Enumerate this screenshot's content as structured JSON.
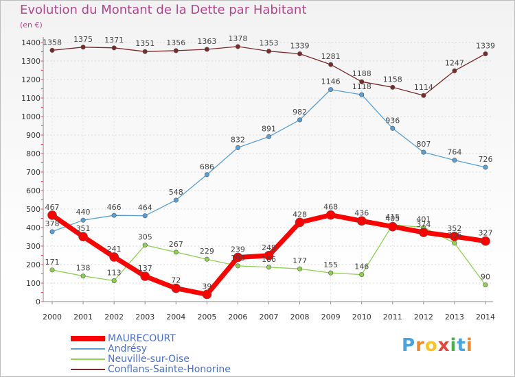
{
  "header": {
    "title": "Evolution du Montant de la Dette par Habitant",
    "subtitle": "(en €)"
  },
  "brand": {
    "text": "Proxiti",
    "colors": [
      "#4aa3df",
      "#f0892a",
      "#f7c325",
      "#e8433a",
      "#48b34a",
      "#4aa3df",
      "#f0892a"
    ]
  },
  "chart_data": {
    "type": "line",
    "title": "Evolution du Montant de la Dette par Habitant",
    "ylabel": "(en €)",
    "xlabel": "",
    "categories": [
      "2000",
      "2001",
      "2002",
      "2003",
      "2004",
      "2005",
      "2006",
      "2007",
      "2008",
      "2009",
      "2010",
      "2011",
      "2012",
      "2013",
      "2014"
    ],
    "ylim": [
      0,
      1400
    ],
    "yticks": [
      0,
      100,
      200,
      300,
      400,
      500,
      600,
      700,
      800,
      900,
      1000,
      1100,
      1200,
      1300,
      1400
    ],
    "grid": true,
    "legend_position": "bottom-left",
    "series": [
      {
        "name": "Conflans-Sainte-Honorine",
        "color": "#7a2a2a",
        "width": 1.3,
        "marker": 3.2,
        "values": [
          1358,
          1375,
          1371,
          1351,
          1356,
          1363,
          1378,
          1353,
          1339,
          1281,
          1188,
          1158,
          1114,
          1247,
          1339
        ],
        "labels": [
          "1358",
          "1375",
          "1371",
          "1351",
          "1356",
          "1363",
          "1378",
          "1353",
          "1339",
          "1281",
          "1188",
          "1158",
          "1114",
          "1247",
          "1339"
        ]
      },
      {
        "name": "Andrésy",
        "color": "#5aa0d6",
        "width": 1.3,
        "marker": 3.2,
        "values": [
          378,
          440,
          466,
          464,
          548,
          686,
          832,
          891,
          982,
          1146,
          1118,
          936,
          807,
          764,
          726
        ],
        "labels": [
          "378",
          "440",
          "466",
          "464",
          "548",
          "686",
          "832",
          "891",
          "982",
          "1146",
          "1118",
          "936",
          "807",
          "764",
          "726"
        ]
      },
      {
        "name": "Neuville-sur-Oise",
        "color": "#8fd14f",
        "width": 1.3,
        "marker": 3.2,
        "values": [
          171,
          138,
          113,
          305,
          267,
          229,
          193,
          186,
          177,
          155,
          146,
          415,
          401,
          316,
          90
        ],
        "labels": [
          "171",
          "138",
          "113",
          "305",
          "267",
          "229",
          "193",
          "186",
          "177",
          "155",
          "146",
          "415",
          "401",
          "316",
          "90"
        ]
      },
      {
        "name": "MAURECOURT",
        "color": "#ff0000",
        "width": 7,
        "marker": 6.5,
        "values": [
          467,
          351,
          241,
          137,
          72,
          39,
          239,
          249,
          428,
          468,
          436,
          405,
          374,
          352,
          327
        ],
        "labels": [
          "467",
          "351",
          "241",
          "137",
          "72",
          "39",
          "239",
          "249",
          "428",
          "468",
          "436",
          "405",
          "374",
          "352",
          "327"
        ]
      }
    ],
    "legend": [
      "MAURECOURT",
      "Andrésy",
      "Neuville-sur-Oise",
      "Conflans-Sainte-Honorine"
    ]
  }
}
